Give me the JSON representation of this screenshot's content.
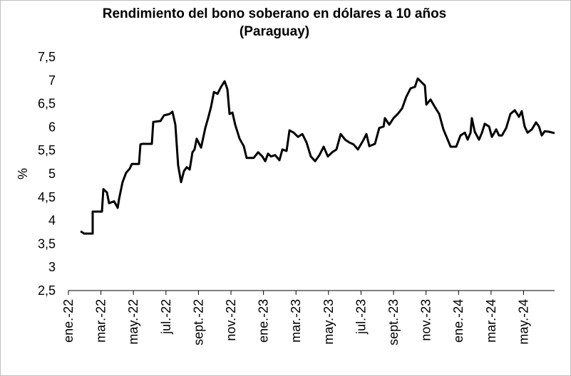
{
  "chart_data": {
    "type": "line",
    "title": [
      "Rendimiento del bono soberano en dólares a 10 años",
      "(Paraguay)"
    ],
    "y_label": "%",
    "x": [
      0.75,
      0.96,
      1.49,
      1.49,
      2.06,
      2.15,
      2.37,
      2.5,
      2.81,
      3.03,
      3.11,
      3.33,
      3.55,
      3.77,
      3.9,
      4.34,
      4.43,
      4.56,
      5.13,
      5.22,
      5.66,
      5.88,
      6.23,
      6.4,
      6.58,
      6.75,
      6.93,
      7.11,
      7.28,
      7.46,
      7.63,
      7.76,
      7.89,
      8.16,
      8.42,
      8.6,
      8.77,
      8.95,
      9.17,
      9.39,
      9.61,
      9.78,
      9.91,
      10.09,
      10.26,
      10.53,
      10.79,
      10.96,
      11.4,
      11.67,
      11.93,
      12.11,
      12.28,
      12.46,
      12.72,
      12.98,
      13.16,
      13.42,
      13.6,
      13.86,
      14.12,
      14.39,
      14.65,
      14.91,
      15.18,
      15.44,
      15.7,
      15.96,
      16.23,
      16.49,
      16.75,
      17.02,
      17.28,
      17.54,
      17.81,
      18.16,
      18.33,
      18.51,
      18.86,
      19.12,
      19.39,
      19.47,
      19.74,
      20,
      20.26,
      20.53,
      20.79,
      21.05,
      21.32,
      21.49,
      21.75,
      21.93,
      22.02,
      22.28,
      22.54,
      22.81,
      23.07,
      23.33,
      23.51,
      23.86,
      24.12,
      24.39,
      24.56,
      24.74,
      24.82,
      25,
      25.26,
      25.44,
      25.61,
      25.88,
      26.05,
      26.32,
      26.49,
      26.67,
      26.93,
      27.19,
      27.46,
      27.72,
      27.89,
      28.07,
      28.25,
      28.51,
      28.77,
      28.95,
      29.12,
      29.3,
      29.56,
      29.91
    ],
    "series": [
      {
        "name": "Paraguay",
        "color": "#000000",
        "values": [
          3.77,
          3.72,
          3.72,
          4.19,
          4.19,
          4.67,
          4.6,
          4.37,
          4.41,
          4.27,
          4.45,
          4.82,
          5.02,
          5.11,
          5.21,
          5.21,
          5.63,
          5.64,
          5.64,
          6.11,
          6.13,
          6.25,
          6.28,
          6.33,
          6.05,
          5.18,
          4.82,
          5.06,
          5.14,
          5.09,
          5.46,
          5.52,
          5.75,
          5.56,
          5.98,
          6.2,
          6.43,
          6.75,
          6.71,
          6.86,
          6.98,
          6.81,
          6.28,
          6.31,
          6.05,
          5.75,
          5.59,
          5.34,
          5.34,
          5.46,
          5.37,
          5.27,
          5.43,
          5.37,
          5.4,
          5.29,
          5.52,
          5.49,
          5.93,
          5.88,
          5.79,
          5.85,
          5.67,
          5.37,
          5.27,
          5.4,
          5.58,
          5.37,
          5.46,
          5.52,
          5.85,
          5.73,
          5.67,
          5.63,
          5.52,
          5.73,
          5.85,
          5.59,
          5.64,
          5.98,
          6.01,
          6.19,
          6.05,
          6.19,
          6.28,
          6.4,
          6.65,
          6.83,
          6.86,
          7.04,
          6.95,
          6.89,
          6.48,
          6.59,
          6.43,
          6.28,
          5.95,
          5.73,
          5.58,
          5.58,
          5.82,
          5.88,
          5.73,
          5.88,
          6.19,
          5.9,
          5.73,
          5.88,
          6.07,
          6.01,
          5.79,
          5.95,
          5.82,
          5.82,
          5.98,
          6.28,
          6.36,
          6.22,
          6.34,
          6.01,
          5.88,
          5.95,
          6.1,
          6.01,
          5.82,
          5.91,
          5.9,
          5.87
        ]
      }
    ],
    "xlim": [
      0,
      29.91
    ],
    "xticks": [
      {
        "value": 0,
        "label": "ene.-22"
      },
      {
        "value": 2,
        "label": "mar.-22"
      },
      {
        "value": 4,
        "label": "may.-22"
      },
      {
        "value": 6,
        "label": "jul.-22"
      },
      {
        "value": 8,
        "label": "sept.-22"
      },
      {
        "value": 10,
        "label": "nov.-22"
      },
      {
        "value": 12,
        "label": "ene.-23"
      },
      {
        "value": 14,
        "label": "mar.-23"
      },
      {
        "value": 16,
        "label": "may.-23"
      },
      {
        "value": 18,
        "label": "jul.-23"
      },
      {
        "value": 20,
        "label": "sept.-23"
      },
      {
        "value": 22,
        "label": "nov.-23"
      },
      {
        "value": 24,
        "label": "ene.-24"
      },
      {
        "value": 26,
        "label": "mar.-24"
      },
      {
        "value": 28,
        "label": "may.-24"
      }
    ],
    "ylim": [
      2.5,
      7.5
    ],
    "yticks": [
      {
        "value": 2.5,
        "label": "2,5"
      },
      3,
      {
        "value": 3.5,
        "label": "3,5"
      },
      4,
      {
        "value": 4.5,
        "label": "4,5"
      },
      5,
      {
        "value": 5.5,
        "label": "5,5"
      },
      6,
      {
        "value": 6.5,
        "label": "6,5"
      },
      7,
      {
        "value": 7.5,
        "label": "7,5"
      }
    ],
    "grid": false
  }
}
